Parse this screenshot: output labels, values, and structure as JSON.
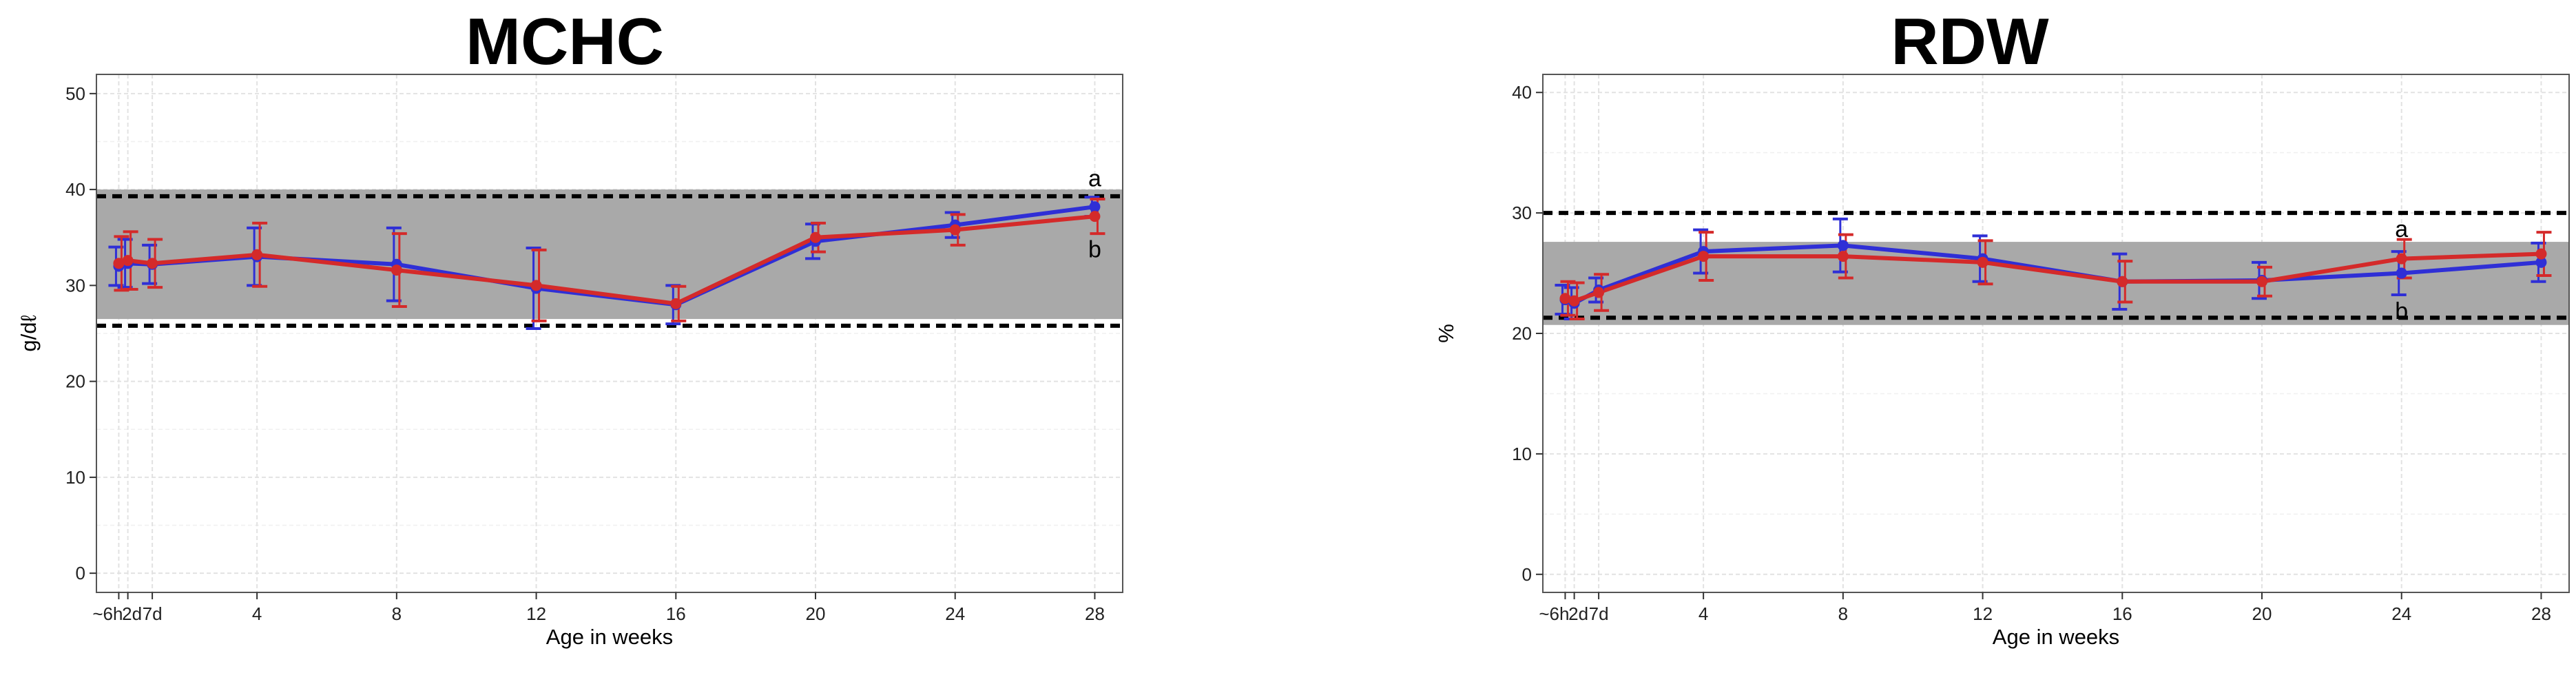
{
  "colors": {
    "band": "#a9a9a9",
    "series_blue": "#2f2fd6",
    "series_red": "#d42a2a",
    "grid": "#e2e2e2",
    "dashed": "#000000"
  },
  "chart_data": [
    {
      "type": "line",
      "title": "MCHC",
      "xlabel": "Age in weeks",
      "ylabel": "g/dℓ",
      "xlim": [
        -0.6,
        28.8
      ],
      "ylim": [
        -2,
        52
      ],
      "yticks": [
        0,
        10,
        20,
        30,
        40,
        50
      ],
      "x": [
        0.04,
        0.3,
        1,
        4,
        8,
        12,
        16,
        20,
        24,
        28
      ],
      "xtick_labels": [
        "~6h",
        "2d",
        "7d",
        "4",
        "8",
        "12",
        "16",
        "20",
        "24",
        "28"
      ],
      "grid": true,
      "reference_band": [
        26.5,
        40
      ],
      "reference_lines": [
        25.8,
        39.3
      ],
      "annotations": [
        {
          "text": "a",
          "x": 28,
          "y": 41.2
        },
        {
          "text": "b",
          "x": 28,
          "y": 33.8
        }
      ],
      "series": [
        {
          "color": "blue",
          "values": [
            32.0,
            32.3,
            32.2,
            33.0,
            32.2,
            29.7,
            28.0,
            34.6,
            36.3,
            38.2
          ],
          "err": [
            2.0,
            2.5,
            2.0,
            3.0,
            3.8,
            4.2,
            2.0,
            1.8,
            1.3,
            1.0
          ]
        },
        {
          "color": "red",
          "values": [
            32.3,
            32.6,
            32.3,
            33.2,
            31.6,
            30.0,
            28.1,
            35.0,
            35.8,
            37.2
          ],
          "err": [
            2.8,
            3.0,
            2.5,
            3.3,
            3.8,
            3.7,
            1.8,
            1.5,
            1.6,
            1.8
          ]
        }
      ]
    },
    {
      "type": "line",
      "title": "RDW",
      "xlabel": "Age in weeks",
      "ylabel": "%",
      "xlim": [
        -0.6,
        28.8
      ],
      "ylim": [
        -1.5,
        41.5
      ],
      "yticks": [
        0,
        10,
        20,
        30,
        40
      ],
      "x": [
        0.04,
        0.3,
        1,
        4,
        8,
        12,
        16,
        20,
        24,
        28
      ],
      "xtick_labels": [
        "~6h",
        "2d",
        "7d",
        "4",
        "8",
        "12",
        "16",
        "20",
        "24",
        "28"
      ],
      "grid": true,
      "reference_band": [
        20.7,
        27.6
      ],
      "reference_lines": [
        21.3,
        30.0
      ],
      "annotations": [
        {
          "text": "a",
          "x": 24,
          "y": 28.7
        },
        {
          "text": "b",
          "x": 24,
          "y": 21.9
        }
      ],
      "series": [
        {
          "color": "blue",
          "values": [
            22.8,
            22.5,
            23.6,
            26.8,
            27.3,
            26.2,
            24.3,
            24.4,
            25.0,
            25.9
          ],
          "err": [
            1.2,
            1.3,
            1.0,
            1.8,
            2.2,
            1.9,
            2.3,
            1.5,
            1.8,
            1.6
          ]
        },
        {
          "color": "red",
          "values": [
            22.9,
            22.7,
            23.4,
            26.4,
            26.4,
            25.9,
            24.3,
            24.3,
            26.2,
            26.6
          ],
          "err": [
            1.4,
            1.5,
            1.5,
            2.0,
            1.8,
            1.8,
            1.7,
            1.2,
            1.6,
            1.8
          ]
        }
      ]
    }
  ]
}
